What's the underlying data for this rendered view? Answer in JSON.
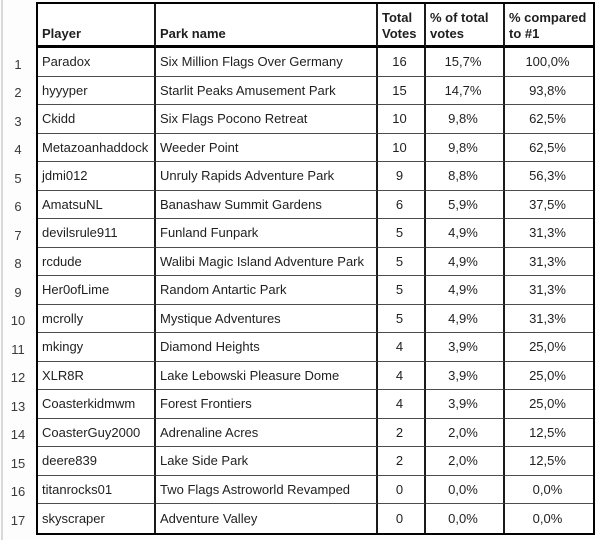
{
  "sheet": {
    "header": {
      "player": "Player",
      "park": "Park name",
      "total_votes": "Total\nVotes",
      "pct_total": "% of total\nvotes",
      "pct_vs_first": "% compared\nto #1"
    },
    "rows": [
      {
        "rank": "1",
        "player": "Paradox",
        "park": "Six Million Flags Over Germany",
        "votes": "16",
        "pct_total": "15,7%",
        "pct_vs_first": "100,0%"
      },
      {
        "rank": "2",
        "player": "hyyyper",
        "park": "Starlit Peaks Amusement Park",
        "votes": "15",
        "pct_total": "14,7%",
        "pct_vs_first": "93,8%"
      },
      {
        "rank": "3",
        "player": "Ckidd",
        "park": "Six Flags Pocono Retreat",
        "votes": "10",
        "pct_total": "9,8%",
        "pct_vs_first": "62,5%"
      },
      {
        "rank": "4",
        "player": "Metazoanhaddock",
        "park": "Weeder Point",
        "votes": "10",
        "pct_total": "9,8%",
        "pct_vs_first": "62,5%"
      },
      {
        "rank": "5",
        "player": "jdmi012",
        "park": "Unruly Rapids Adventure Park",
        "votes": "9",
        "pct_total": "8,8%",
        "pct_vs_first": "56,3%"
      },
      {
        "rank": "6",
        "player": "AmatsuNL",
        "park": "Banashaw Summit Gardens",
        "votes": "6",
        "pct_total": "5,9%",
        "pct_vs_first": "37,5%"
      },
      {
        "rank": "7",
        "player": "devilsrule911",
        "park": "Funland Funpark",
        "votes": "5",
        "pct_total": "4,9%",
        "pct_vs_first": "31,3%"
      },
      {
        "rank": "8",
        "player": "rcdude",
        "park": "Walibi Magic Island Adventure Park",
        "votes": "5",
        "pct_total": "4,9%",
        "pct_vs_first": "31,3%"
      },
      {
        "rank": "9",
        "player": "Her0ofLime",
        "park": "Random Antartic Park",
        "votes": "5",
        "pct_total": "4,9%",
        "pct_vs_first": "31,3%"
      },
      {
        "rank": "10",
        "player": "mcrolly",
        "park": "Mystique Adventures",
        "votes": "5",
        "pct_total": "4,9%",
        "pct_vs_first": "31,3%"
      },
      {
        "rank": "11",
        "player": "mkingy",
        "park": "Diamond Heights",
        "votes": "4",
        "pct_total": "3,9%",
        "pct_vs_first": "25,0%"
      },
      {
        "rank": "12",
        "player": "XLR8R",
        "park": "Lake Lebowski Pleasure Dome",
        "votes": "4",
        "pct_total": "3,9%",
        "pct_vs_first": "25,0%"
      },
      {
        "rank": "13",
        "player": "Coasterkidmwm",
        "park": "Forest Frontiers",
        "votes": "4",
        "pct_total": "3,9%",
        "pct_vs_first": "25,0%"
      },
      {
        "rank": "14",
        "player": "CoasterGuy2000",
        "park": "Adrenaline Acres",
        "votes": "2",
        "pct_total": "2,0%",
        "pct_vs_first": "12,5%"
      },
      {
        "rank": "15",
        "player": "deere839",
        "park": "Lake Side Park",
        "votes": "2",
        "pct_total": "2,0%",
        "pct_vs_first": "12,5%"
      },
      {
        "rank": "16",
        "player": "titanrocks01",
        "park": "Two Flags Astroworld Revamped",
        "votes": "0",
        "pct_total": "0,0%",
        "pct_vs_first": "0,0%"
      },
      {
        "rank": "17",
        "player": "skyscraper",
        "park": "Adventure Valley",
        "votes": "0",
        "pct_total": "0,0%",
        "pct_vs_first": "0,0%"
      }
    ]
  }
}
